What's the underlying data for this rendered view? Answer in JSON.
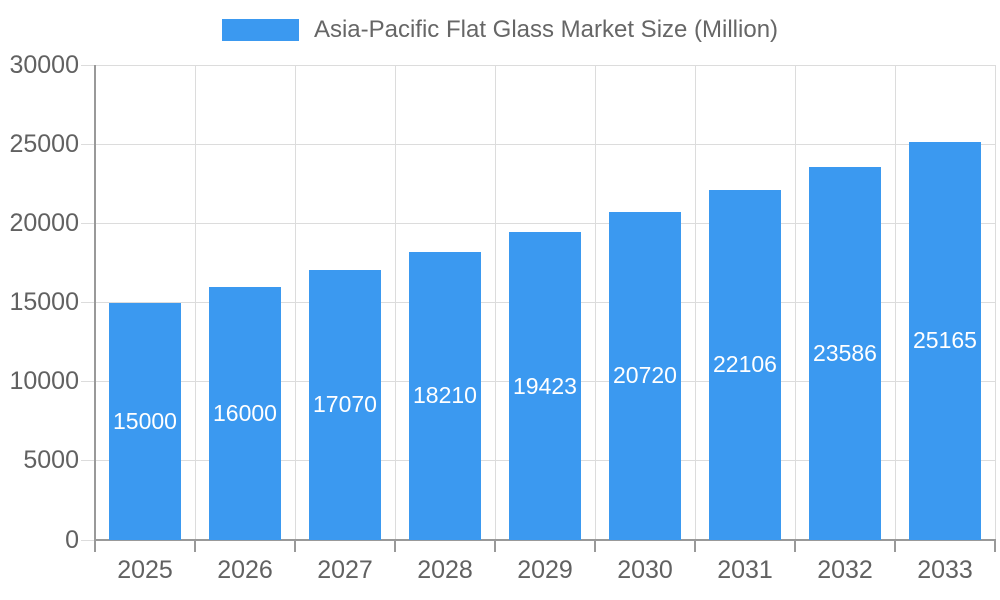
{
  "legend": {
    "series_label": "Asia-Pacific Flat Glass Market Size (Million)"
  },
  "chart_data": {
    "type": "bar",
    "title": "Asia-Pacific Flat Glass Market Size (Million)",
    "categories": [
      "2025",
      "2026",
      "2027",
      "2028",
      "2029",
      "2030",
      "2031",
      "2032",
      "2033"
    ],
    "values": [
      15000,
      16000,
      17070,
      18210,
      19423,
      20720,
      22106,
      23586,
      25165
    ],
    "data_labels": [
      "15000",
      "16000",
      "17070",
      "18210",
      "19423",
      "20720",
      "22106",
      "23586",
      "25165"
    ],
    "xlabel": "",
    "ylabel": "",
    "ylim": [
      0,
      30000
    ],
    "yticks": [
      0,
      5000,
      10000,
      15000,
      20000,
      25000,
      30000
    ],
    "ytick_labels": [
      "0",
      "5000",
      "10000",
      "15000",
      "20000",
      "25000",
      "30000"
    ],
    "grid": true,
    "legend_position": "top",
    "bar_color": "#3b99f0",
    "data_label_color": "#ffffff",
    "axis_color": "#999999",
    "grid_color": "#dcdcdc",
    "tick_text_color": "#616161",
    "legend_text_color": "#666666",
    "background_color": "#ffffff"
  }
}
